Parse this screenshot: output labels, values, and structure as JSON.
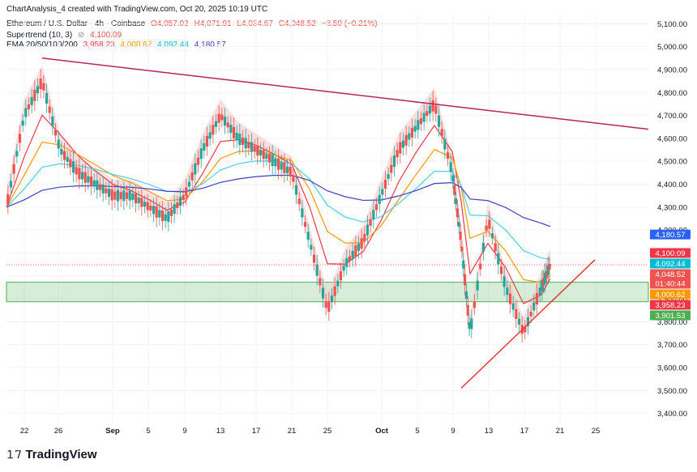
{
  "header": {
    "author_line": "ChartAnalysis_4 created with TradingView.com, Oct 20, 2025 10:19 UTC",
    "symbol_line": {
      "name": "Ethereum / U.S. Dollar · 4h · Coinbase",
      "open": "O4,057.02",
      "high": "H4,071.91",
      "low": "L4,034.67",
      "close": "C4,048.52",
      "change": "−8.50 (−0.21%)"
    },
    "supertrend": {
      "label": "Supertrend (10, 3)",
      "icon": "eye-off-icon",
      "value": "4,100.09"
    },
    "ema": {
      "label": "EMA 20/50/100/200",
      "v20": "3,958.23",
      "v50": "4,000.62",
      "v100": "4,092.44",
      "v200": "4,180.57"
    }
  },
  "branding": {
    "logo_text": "TradingView"
  },
  "colors": {
    "up": "#26a69a",
    "down": "#ef5350",
    "ema20": "#f23645",
    "ema50": "#ff9800",
    "ema100": "#4dd0e1",
    "ema200": "#3f3fc4",
    "trendline": "#b7225f",
    "support_zone": "#4caf50",
    "supertrend_down_fill": "#f8c4c4",
    "supertrend_up_fill": "#cde8cd"
  },
  "chart_data": {
    "type": "line",
    "title": "Ethereum / U.S. Dollar · 4h · Coinbase",
    "x_ticks": [
      "22",
      "26",
      "Sep",
      "5",
      "9",
      "13",
      "17",
      "21",
      "25",
      "Oct",
      "5",
      "9",
      "13",
      "17",
      "21",
      "25"
    ],
    "y_ticks": [
      "3,400.00",
      "3,500.00",
      "3,600.00",
      "3,700.00",
      "3,800.00",
      "3,900.00",
      "4,000.00",
      "4,100.00",
      "4,200.00",
      "4,300.00",
      "4,400.00",
      "4,500.00",
      "4,600.00",
      "4,700.00",
      "4,800.00",
      "4,900.00",
      "5,000.00",
      "5,100.00"
    ],
    "ylim": [
      3360,
      5140
    ],
    "series": [
      {
        "name": "Price",
        "x": [
          "2025-08-20",
          "2025-08-22",
          "2025-08-24",
          "2025-08-26",
          "2025-08-28",
          "2025-08-30",
          "2025-09-01",
          "2025-09-03",
          "2025-09-05",
          "2025-09-07",
          "2025-09-09",
          "2025-09-11",
          "2025-09-13",
          "2025-09-15",
          "2025-09-17",
          "2025-09-19",
          "2025-09-21",
          "2025-09-23",
          "2025-09-25",
          "2025-09-27",
          "2025-09-29",
          "2025-10-01",
          "2025-10-03",
          "2025-10-05",
          "2025-10-07",
          "2025-10-09",
          "2025-10-10",
          "2025-10-11",
          "2025-10-13",
          "2025-10-15",
          "2025-10-17",
          "2025-10-19",
          "2025-10-20"
        ],
        "values": [
          4300,
          4700,
          4850,
          4550,
          4450,
          4400,
          4350,
          4350,
          4300,
          4250,
          4350,
          4550,
          4700,
          4600,
          4550,
          4500,
          4450,
          4150,
          3850,
          4050,
          4150,
          4350,
          4550,
          4650,
          4750,
          4450,
          4150,
          3750,
          4250,
          3950,
          3750,
          3950,
          4048.52
        ]
      },
      {
        "name": "EMA 20",
        "value": 3958.23
      },
      {
        "name": "EMA 50",
        "value": 4000.62
      },
      {
        "name": "EMA 100",
        "value": 4092.44
      },
      {
        "name": "EMA 200",
        "value": 4180.57
      },
      {
        "name": "Supertrend (10, 3)",
        "value": 4100.09
      }
    ],
    "price_labels": [
      {
        "text": "4,180.57",
        "value": 4180.57,
        "color": "#2962ff"
      },
      {
        "text": "4,100.09",
        "value": 4100.09,
        "color": "#f23645"
      },
      {
        "text": "4,092.44",
        "value": 4092.44,
        "color": "#00bcd4"
      },
      {
        "text": "4,048.52",
        "value": 4048.52,
        "color": "#ef5350",
        "sub": "01:40:44"
      },
      {
        "text": "4,000.62",
        "value": 4000.62,
        "color": "#ff9800"
      },
      {
        "text": "3,958.23",
        "value": 3958.23,
        "color": "#f23645"
      },
      {
        "text": "3,901.53",
        "value": 3901.53,
        "color": "#4caf50"
      }
    ],
    "support_zone": [
      3901.53,
      3958.23
    ],
    "upper_trendline": [
      {
        "date": "2025-08-24",
        "price": 4950
      },
      {
        "date": "2025-10-31",
        "price": 4640
      }
    ],
    "lower_trendline": [
      {
        "date": "2025-10-10",
        "price": 3510
      },
      {
        "date": "2025-10-25",
        "price": 4070
      }
    ],
    "grid": true
  }
}
